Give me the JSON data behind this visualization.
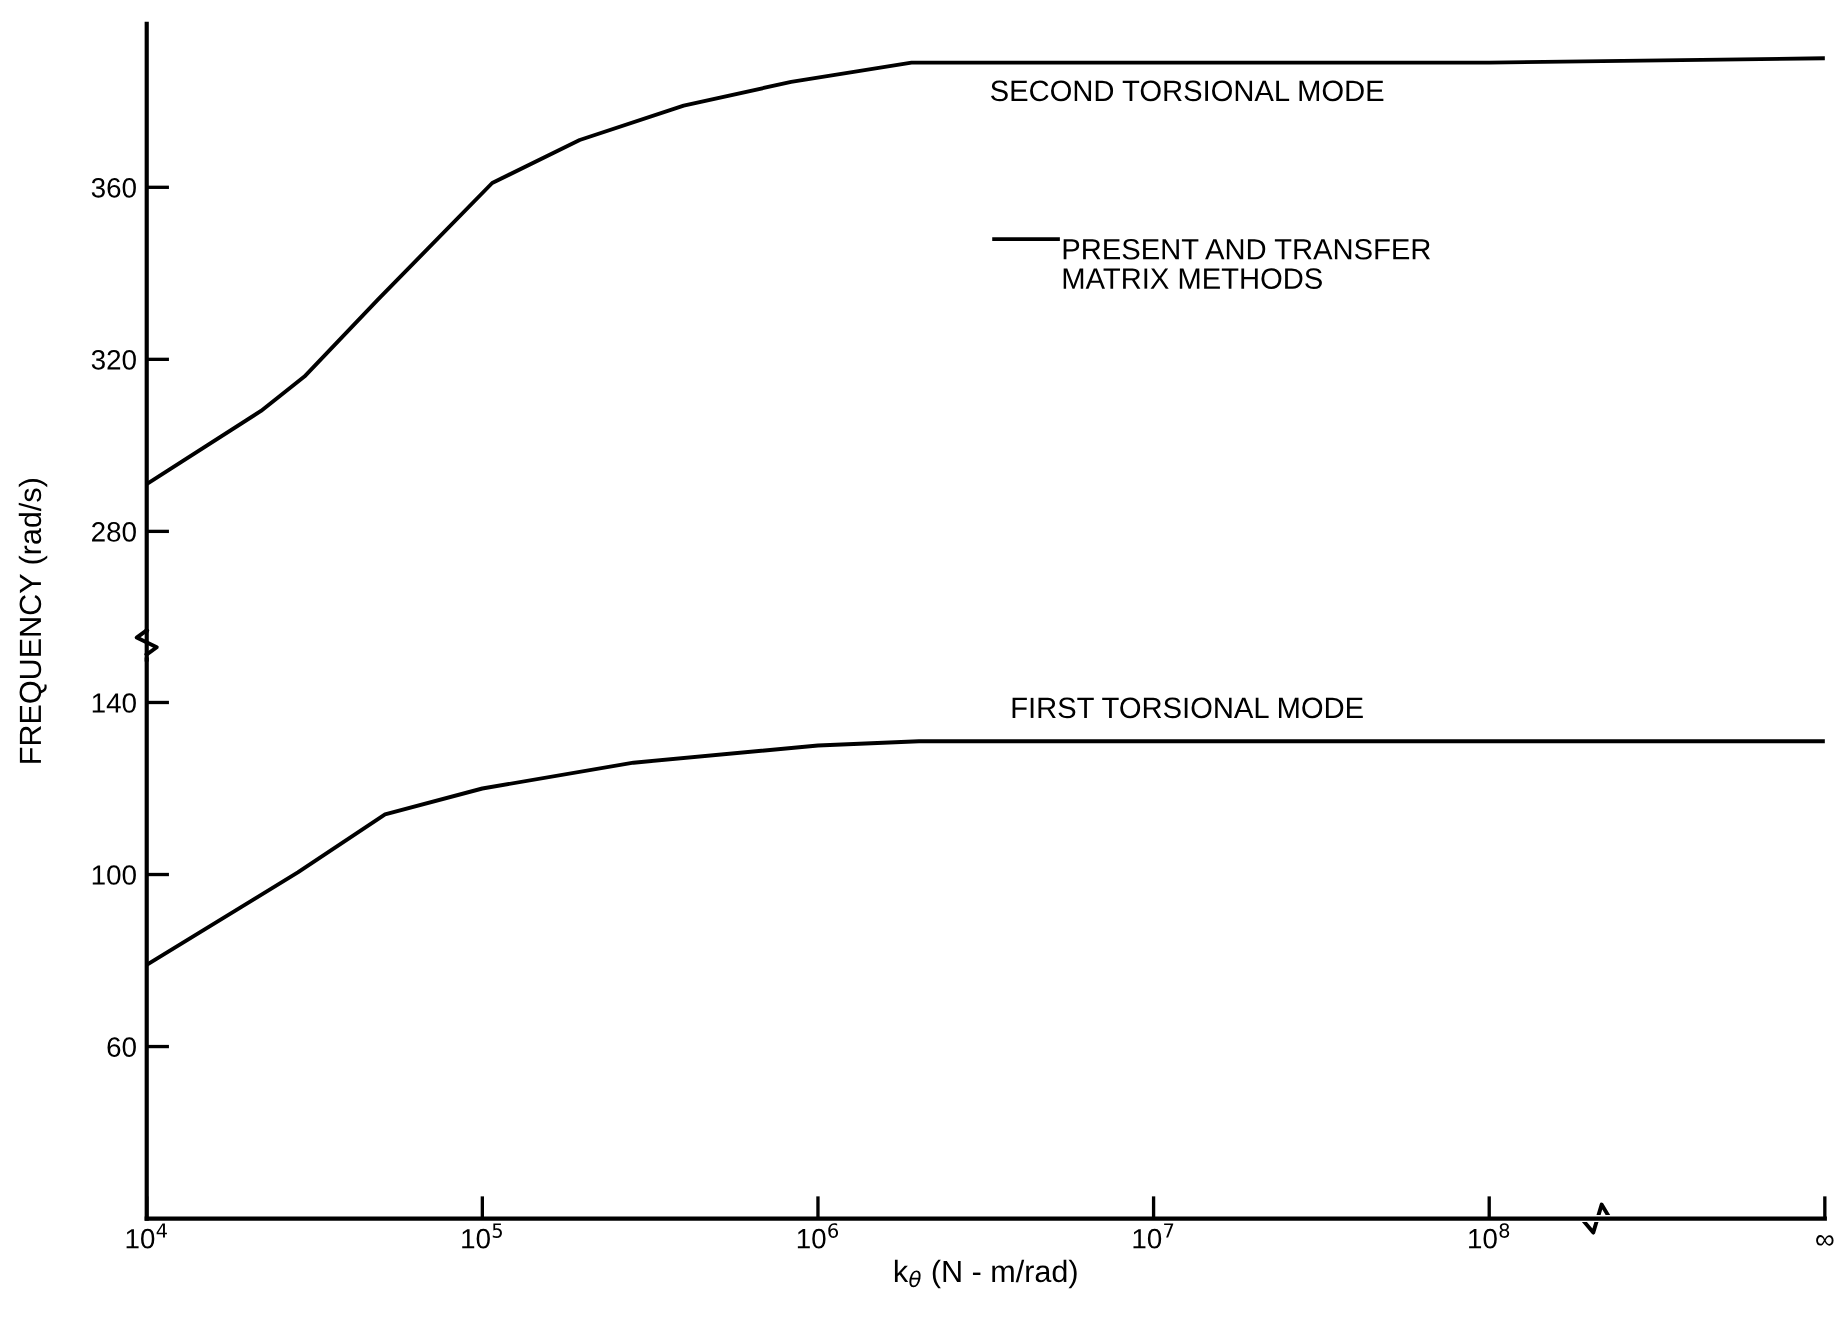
{
  "chart_data": [
    {
      "type": "line",
      "xlim": [
        10000,
        1000000000
      ],
      "ylim": [
        257,
        398
      ],
      "yticks": [
        280,
        320,
        360
      ],
      "tick_labels": "y",
      "log": "x",
      "grid": false,
      "legend": false,
      "marker": "none",
      "line_style": "solid",
      "annotations": [
        "PRESENT AND TRANSFER\nMATRIX METHODS"
      ],
      "series": [
        {
          "name": "SECOND TORSIONAL MODE",
          "color": "#000000",
          "x": [
            10000,
            21900,
            29500,
            49000,
            107000,
            195000,
            398000,
            832000,
            1900000,
            10000000,
            100000000,
            1000000000
          ],
          "values": [
            291,
            308,
            316,
            334,
            361,
            371,
            379,
            384.5,
            389,
            389,
            389,
            390
          ]
        }
      ]
    },
    {
      "type": "line",
      "xlim": [
        10000,
        1000000000
      ],
      "ylim": [
        20,
        150
      ],
      "yticks": [
        60,
        100,
        140
      ],
      "log": "x",
      "grid": false,
      "legend": false,
      "marker": "none",
      "line_style": "solid",
      "xticks": [
        {
          "value": 10000,
          "label": "10$^{4}$"
        },
        {
          "value": 100000,
          "label": "10$^{5}$"
        },
        {
          "value": 1000000,
          "label": "10$^{6}$"
        },
        {
          "value": 10000000,
          "label": "10$^{7}$"
        },
        {
          "value": 100000000,
          "label": "10$^{8}$"
        },
        {
          "value": 1000000000,
          "label": "∞"
        }
      ],
      "xlabel": "k$_{θ}$ (N - m/rad)",
      "ylabel": "FREQUENCY (rad/s)",
      "series": [
        {
          "name": "FIRST TORSIONAL MODE",
          "color": "#000000",
          "x": [
            10000,
            28200,
            51300,
            100000,
            282000,
            1000000,
            2000000,
            10000000,
            100000000,
            1000000000
          ],
          "values": [
            79,
            100.5,
            114,
            120,
            126,
            130,
            131,
            131,
            131,
            131
          ]
        }
      ]
    }
  ]
}
